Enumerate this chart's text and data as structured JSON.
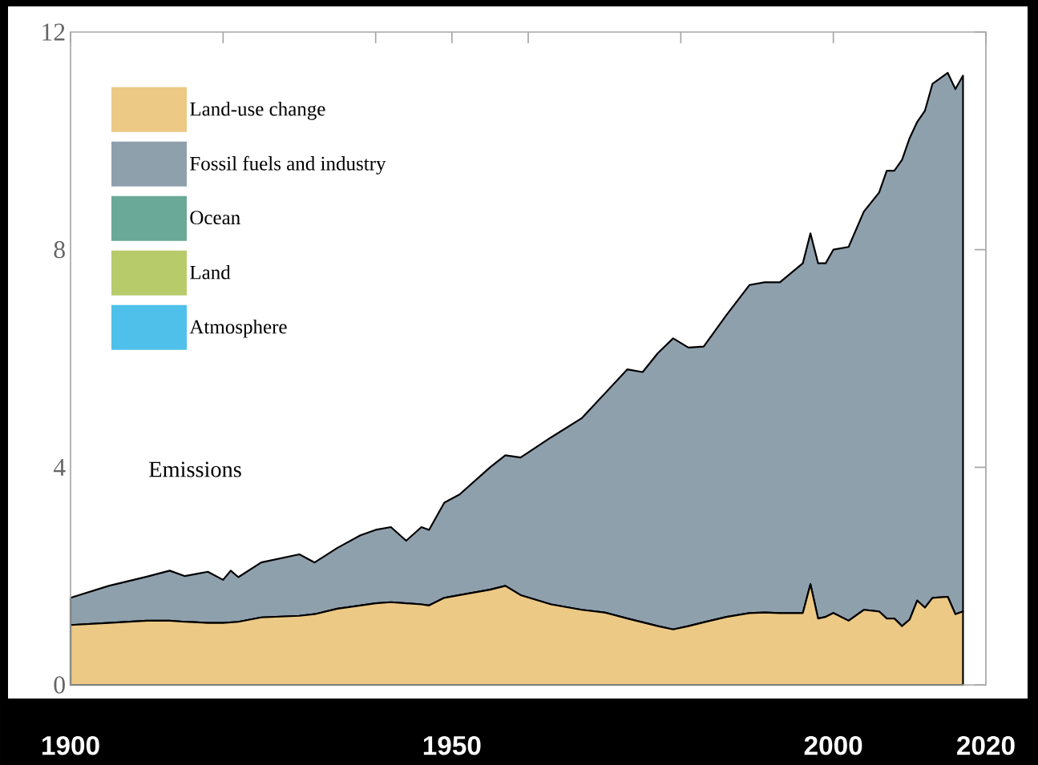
{
  "chart_data": {
    "type": "area",
    "stacked": true,
    "x": [
      1900,
      1905,
      1910,
      1913,
      1915,
      1918,
      1920,
      1921,
      1922,
      1925,
      1930,
      1932,
      1935,
      1938,
      1940,
      1942,
      1944,
      1946,
      1947,
      1949,
      1951,
      1955,
      1957,
      1959,
      1963,
      1967,
      1970,
      1973,
      1975,
      1977,
      1979,
      1981,
      1983,
      1986,
      1989,
      1991,
      1993,
      1996,
      1997,
      1998,
      1999,
      2000,
      2002,
      2004,
      2006,
      2007,
      2008,
      2009,
      2010,
      2011,
      2012,
      2013,
      2015,
      2016,
      2017
    ],
    "series": [
      {
        "name": "Land-use change",
        "color": "#ecc985",
        "values": [
          1.1,
          1.14,
          1.18,
          1.18,
          1.16,
          1.14,
          1.14,
          1.15,
          1.16,
          1.24,
          1.27,
          1.3,
          1.4,
          1.46,
          1.5,
          1.52,
          1.5,
          1.48,
          1.46,
          1.6,
          1.65,
          1.75,
          1.82,
          1.65,
          1.48,
          1.38,
          1.33,
          1.22,
          1.15,
          1.08,
          1.02,
          1.08,
          1.15,
          1.25,
          1.32,
          1.33,
          1.32,
          1.32,
          1.85,
          1.22,
          1.25,
          1.32,
          1.18,
          1.38,
          1.35,
          1.22,
          1.22,
          1.08,
          1.2,
          1.55,
          1.42,
          1.6,
          1.62,
          1.3,
          1.35
        ]
      },
      {
        "name": "Fossil fuels and industry",
        "color": "#8fa0ad",
        "values": [
          0.5,
          0.68,
          0.81,
          0.92,
          0.84,
          0.94,
          0.79,
          0.95,
          0.82,
          1.01,
          1.13,
          0.95,
          1.12,
          1.29,
          1.35,
          1.38,
          1.15,
          1.42,
          1.39,
          1.75,
          1.85,
          2.25,
          2.4,
          2.53,
          3.07,
          3.52,
          4.02,
          4.58,
          4.6,
          5.02,
          5.35,
          5.12,
          5.07,
          5.55,
          6.03,
          6.07,
          6.08,
          6.43,
          6.45,
          6.53,
          6.5,
          6.68,
          6.87,
          7.32,
          7.7,
          8.23,
          8.23,
          8.57,
          8.85,
          8.8,
          9.13,
          9.45,
          9.63,
          9.65,
          9.85
        ]
      },
      {
        "name": "Ocean",
        "color": "#6aa898",
        "values": [
          null,
          null,
          null,
          null,
          null,
          null,
          null,
          null,
          null,
          null,
          null,
          null,
          null,
          null,
          null,
          null,
          null,
          null,
          null,
          null,
          null,
          null,
          null,
          null,
          null,
          null,
          null,
          null,
          null,
          null,
          null,
          null,
          null,
          null,
          null,
          null,
          null,
          null,
          null,
          null,
          null,
          null,
          null,
          null,
          null,
          null,
          null,
          null,
          null,
          null,
          null,
          null,
          null,
          null,
          null
        ]
      },
      {
        "name": "Land",
        "color": "#b7cb6a",
        "values": [
          null,
          null,
          null,
          null,
          null,
          null,
          null,
          null,
          null,
          null,
          null,
          null,
          null,
          null,
          null,
          null,
          null,
          null,
          null,
          null,
          null,
          null,
          null,
          null,
          null,
          null,
          null,
          null,
          null,
          null,
          null,
          null,
          null,
          null,
          null,
          null,
          null,
          null,
          null,
          null,
          null,
          null,
          null,
          null,
          null,
          null,
          null,
          null,
          null,
          null,
          null,
          null,
          null,
          null,
          null
        ]
      },
      {
        "name": "Atmosphere",
        "color": "#4ec0ea",
        "values": [
          null,
          null,
          null,
          null,
          null,
          null,
          null,
          null,
          null,
          null,
          null,
          null,
          null,
          null,
          null,
          null,
          null,
          null,
          null,
          null,
          null,
          null,
          null,
          null,
          null,
          null,
          null,
          null,
          null,
          null,
          null,
          null,
          null,
          null,
          null,
          null,
          null,
          null,
          null,
          null,
          null,
          null,
          null,
          null,
          null,
          null,
          null,
          null,
          null,
          null,
          null,
          null,
          null,
          null,
          null
        ]
      }
    ],
    "xlim": [
      1900,
      2020
    ],
    "xticks": [
      1900,
      {
        "value": 1920,
        "label": null
      },
      {
        "value": 1940,
        "label": null
      },
      1950,
      {
        "value": 1960,
        "label": null
      },
      {
        "value": 1980,
        "label": null
      },
      2000,
      2020
    ],
    "ylim": [
      0,
      12
    ],
    "yticks": [
      0,
      4,
      8,
      12
    ],
    "legend": "top left",
    "annotations": [
      "Emissions"
    ]
  }
}
